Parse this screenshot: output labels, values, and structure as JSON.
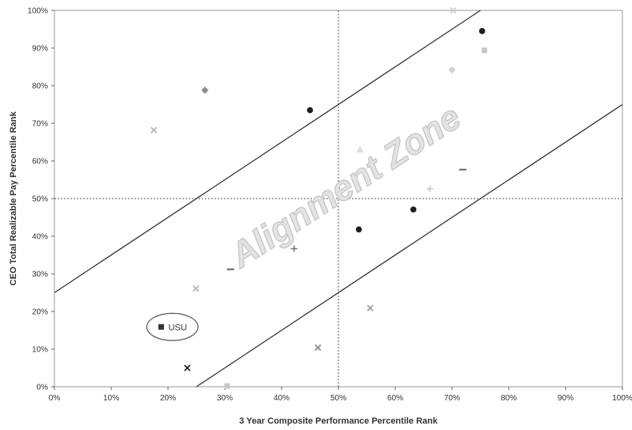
{
  "chart_data": {
    "type": "scatter",
    "title": "",
    "xlabel": "3 Year Composite Performance Percentile Rank",
    "ylabel": "CEO Total  Realizable Pay Percentile Rank",
    "xlim": [
      0,
      100
    ],
    "ylim": [
      0,
      100
    ],
    "x_tick_labels": [
      "0%",
      "10%",
      "20%",
      "30%",
      "40%",
      "50%",
      "60%",
      "70%",
      "80%",
      "90%",
      "100%"
    ],
    "y_tick_labels": [
      "0%",
      "10%",
      "20%",
      "30%",
      "40%",
      "50%",
      "60%",
      "70%",
      "80%",
      "90%",
      "100%"
    ],
    "grid": false,
    "reference_lines": [
      {
        "orientation": "vertical",
        "value": 50,
        "style": "dotted"
      },
      {
        "orientation": "horizontal",
        "value": 50,
        "style": "dotted"
      }
    ],
    "band_lines": [
      {
        "x": [
          0,
          75
        ],
        "y": [
          25,
          100
        ]
      },
      {
        "x": [
          25,
          100
        ],
        "y": [
          0,
          75
        ]
      }
    ],
    "band_label": "Alignment Zone",
    "highlight": {
      "label": "USU",
      "x": 18.8,
      "y": 15.9,
      "color": "#333333"
    },
    "points": [
      {
        "x": 75.3,
        "y": 94.5,
        "marker": "circle",
        "color": "#1e1e1e"
      },
      {
        "x": 75.7,
        "y": 89.4,
        "marker": "square",
        "color": "#c8c8c8"
      },
      {
        "x": 70.2,
        "y": 100.0,
        "marker": "x",
        "color": "#d0d0d0"
      },
      {
        "x": 70.0,
        "y": 84.2,
        "marker": "diamond",
        "color": "#d2d2d2"
      },
      {
        "x": 26.5,
        "y": 78.8,
        "marker": "diamond",
        "color": "#8c8c8c"
      },
      {
        "x": 45.0,
        "y": 73.5,
        "marker": "circle",
        "color": "#1e1e1e"
      },
      {
        "x": 17.5,
        "y": 68.2,
        "marker": "x",
        "color": "#b4b4b4"
      },
      {
        "x": 53.8,
        "y": 63.0,
        "marker": "triangle",
        "color": "#dcdcdc"
      },
      {
        "x": 71.9,
        "y": 57.7,
        "marker": "dash",
        "color": "#666666"
      },
      {
        "x": 66.1,
        "y": 52.6,
        "marker": "plus",
        "color": "#c8c8c8"
      },
      {
        "x": 63.2,
        "y": 47.1,
        "marker": "circle",
        "color": "#1e1e1e"
      },
      {
        "x": 53.6,
        "y": 41.8,
        "marker": "circle",
        "color": "#1e1e1e"
      },
      {
        "x": 42.2,
        "y": 36.7,
        "marker": "plus",
        "color": "#777777"
      },
      {
        "x": 31.0,
        "y": 31.2,
        "marker": "dash",
        "color": "#666666"
      },
      {
        "x": 24.9,
        "y": 26.1,
        "marker": "x",
        "color": "#b4b4b4"
      },
      {
        "x": 55.6,
        "y": 20.9,
        "marker": "x",
        "color": "#a0a0a0"
      },
      {
        "x": 46.4,
        "y": 10.4,
        "marker": "x",
        "color": "#8c8c8c"
      },
      {
        "x": 23.4,
        "y": 5.0,
        "marker": "x",
        "color": "#2a2a2a"
      },
      {
        "x": 30.4,
        "y": 0.2,
        "marker": "square",
        "color": "#c8c8c8"
      }
    ]
  }
}
